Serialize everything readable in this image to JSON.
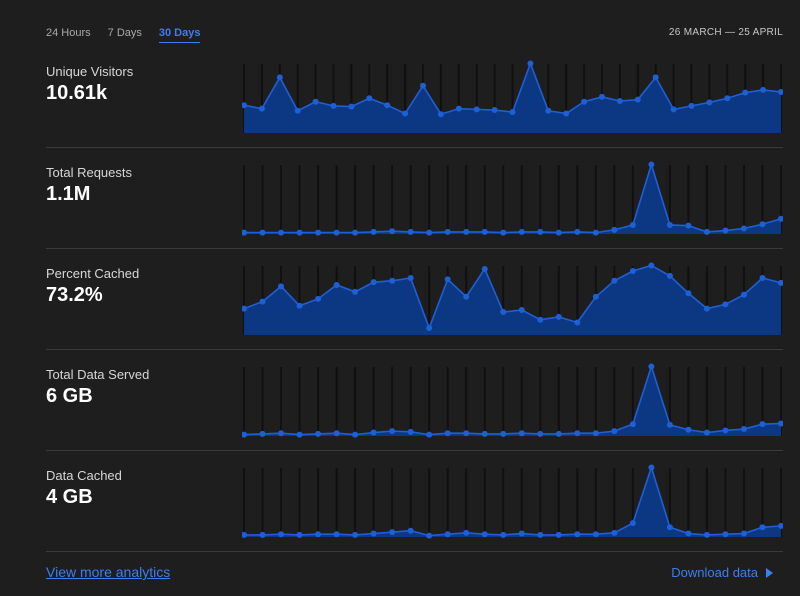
{
  "tabs": [
    {
      "label": "24 Hours",
      "active": false
    },
    {
      "label": "7 Days",
      "active": false
    },
    {
      "label": "30 Days",
      "active": true
    }
  ],
  "date_range": "26 MARCH — 25 APRIL",
  "colors": {
    "accent": "#3b7ff2",
    "area_fill": "#0c3782",
    "line": "#1f5fd6",
    "background": "#1e1e1f"
  },
  "metrics": [
    {
      "label": "Unique Visitors",
      "value": "10.61k"
    },
    {
      "label": "Total Requests",
      "value": "1.1M"
    },
    {
      "label": "Percent Cached",
      "value": "73.2%"
    },
    {
      "label": "Total Data Served",
      "value": "6 GB"
    },
    {
      "label": "Data Cached",
      "value": "4 GB"
    }
  ],
  "chart_data": [
    {
      "type": "area",
      "series": [
        {
          "values": [
            0.4,
            0.35,
            0.8,
            0.32,
            0.45,
            0.39,
            0.38,
            0.5,
            0.4,
            0.28,
            0.68,
            0.27,
            0.35,
            0.34,
            0.33,
            0.3,
            1.0,
            0.32,
            0.28,
            0.45,
            0.52,
            0.46,
            0.48,
            0.8,
            0.34,
            0.39,
            0.44,
            0.5,
            0.58,
            0.62,
            0.59
          ]
        }
      ],
      "ylim": [
        0,
        1.05
      ]
    },
    {
      "type": "area",
      "series": [
        {
          "values": [
            0.02,
            0.02,
            0.02,
            0.02,
            0.02,
            0.02,
            0.02,
            0.03,
            0.04,
            0.03,
            0.02,
            0.03,
            0.03,
            0.03,
            0.02,
            0.03,
            0.03,
            0.02,
            0.03,
            0.02,
            0.06,
            0.13,
            1.0,
            0.13,
            0.12,
            0.03,
            0.05,
            0.08,
            0.14,
            0.22
          ]
        }
      ],
      "ylim": [
        0,
        1.05
      ]
    },
    {
      "type": "area",
      "series": [
        {
          "values": [
            0.38,
            0.48,
            0.7,
            0.42,
            0.52,
            0.72,
            0.62,
            0.76,
            0.78,
            0.82,
            0.1,
            0.8,
            0.55,
            0.95,
            0.33,
            0.36,
            0.22,
            0.26,
            0.18,
            0.55,
            0.78,
            0.92,
            1.0,
            0.85,
            0.6,
            0.38,
            0.44,
            0.58,
            0.82,
            0.75
          ]
        }
      ],
      "ylim": [
        0,
        1.05
      ]
    },
    {
      "type": "area",
      "series": [
        {
          "values": [
            0.02,
            0.03,
            0.04,
            0.02,
            0.03,
            0.04,
            0.02,
            0.05,
            0.07,
            0.06,
            0.02,
            0.04,
            0.04,
            0.03,
            0.03,
            0.04,
            0.03,
            0.03,
            0.04,
            0.04,
            0.07,
            0.17,
            1.0,
            0.16,
            0.09,
            0.05,
            0.08,
            0.1,
            0.17,
            0.18
          ]
        }
      ],
      "ylim": [
        0,
        1.05
      ]
    },
    {
      "type": "area",
      "series": [
        {
          "values": [
            0.03,
            0.03,
            0.04,
            0.03,
            0.04,
            0.04,
            0.03,
            0.05,
            0.07,
            0.09,
            0.02,
            0.04,
            0.06,
            0.04,
            0.03,
            0.05,
            0.03,
            0.03,
            0.04,
            0.04,
            0.06,
            0.2,
            1.0,
            0.14,
            0.05,
            0.03,
            0.04,
            0.05,
            0.14,
            0.16
          ]
        }
      ],
      "ylim": [
        0,
        1.05
      ]
    }
  ],
  "footer": {
    "more_link": "View more analytics",
    "download": "Download data"
  }
}
